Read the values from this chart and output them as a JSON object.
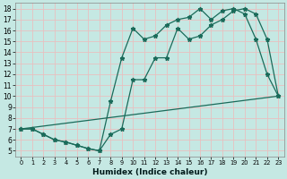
{
  "xlabel": "Humidex (Indice chaleur)",
  "bg_color": "#c5e8e3",
  "grid_color": "#e8c0c0",
  "line_color": "#1a6b5a",
  "xlim": [
    -0.5,
    23.5
  ],
  "ylim": [
    4.5,
    18.5
  ],
  "xticks": [
    0,
    1,
    2,
    3,
    4,
    5,
    6,
    7,
    8,
    9,
    10,
    11,
    12,
    13,
    14,
    15,
    16,
    17,
    18,
    19,
    20,
    21,
    22,
    23
  ],
  "yticks": [
    5,
    6,
    7,
    8,
    9,
    10,
    11,
    12,
    13,
    14,
    15,
    16,
    17,
    18
  ],
  "line1_x": [
    0,
    1,
    2,
    3,
    4,
    5,
    6,
    7,
    8,
    9,
    10,
    11,
    12,
    13,
    14,
    15,
    16,
    17,
    18,
    19,
    20,
    21,
    22,
    23
  ],
  "line1_y": [
    7.0,
    7.0,
    6.5,
    6.0,
    5.8,
    5.5,
    5.2,
    5.0,
    9.5,
    13.5,
    16.2,
    15.2,
    15.5,
    16.5,
    17.0,
    17.2,
    18.0,
    17.0,
    17.8,
    18.0,
    17.5,
    15.2,
    12.0,
    10.0
  ],
  "line2_x": [
    0,
    1,
    2,
    3,
    4,
    5,
    6,
    7,
    8,
    9,
    10,
    11,
    12,
    13,
    14,
    15,
    16,
    17,
    18,
    19,
    20,
    21,
    22,
    23
  ],
  "line2_y": [
    7.0,
    7.0,
    6.5,
    6.0,
    5.8,
    5.5,
    5.2,
    5.0,
    6.5,
    7.0,
    11.5,
    11.5,
    13.5,
    13.5,
    16.2,
    15.2,
    15.5,
    16.5,
    17.0,
    17.8,
    18.0,
    17.5,
    15.2,
    10.0
  ],
  "line3_x": [
    0,
    23
  ],
  "line3_y": [
    7.0,
    10.0
  ]
}
